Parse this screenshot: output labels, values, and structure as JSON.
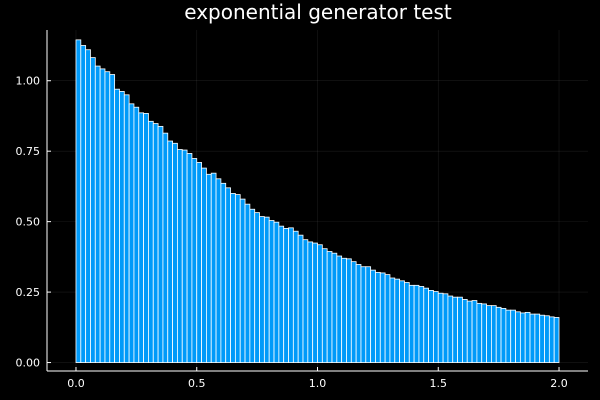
{
  "chart_data": {
    "type": "bar",
    "title": "exponential generator test",
    "xlabel": "",
    "ylabel": "",
    "xlim": [
      -0.12,
      2.12
    ],
    "ylim": [
      -0.03,
      1.18
    ],
    "grid": true,
    "legend": "none",
    "bar_color": "#009af9",
    "edge_color": "#ffffff",
    "bin_width": 0.02,
    "x_start": 0.0,
    "xticks": [
      0.0,
      0.5,
      1.0,
      1.5,
      2.0
    ],
    "xtick_labels": [
      "0.0",
      "0.5",
      "1.0",
      "1.5",
      "2.0"
    ],
    "yticks": [
      0.0,
      0.25,
      0.5,
      0.75,
      1.0
    ],
    "ytick_labels": [
      "0.00",
      "0.25",
      "0.50",
      "0.75",
      "1.00"
    ],
    "values": [
      1.145,
      1.125,
      1.11,
      1.082,
      1.052,
      1.042,
      1.032,
      1.022,
      0.97,
      0.962,
      0.95,
      0.918,
      0.906,
      0.886,
      0.884,
      0.856,
      0.848,
      0.838,
      0.814,
      0.786,
      0.778,
      0.756,
      0.754,
      0.742,
      0.724,
      0.71,
      0.69,
      0.668,
      0.672,
      0.652,
      0.636,
      0.62,
      0.6,
      0.596,
      0.58,
      0.562,
      0.544,
      0.532,
      0.518,
      0.516,
      0.504,
      0.498,
      0.484,
      0.476,
      0.478,
      0.466,
      0.452,
      0.436,
      0.428,
      0.424,
      0.418,
      0.404,
      0.394,
      0.388,
      0.378,
      0.37,
      0.368,
      0.358,
      0.348,
      0.34,
      0.34,
      0.328,
      0.32,
      0.318,
      0.312,
      0.3,
      0.296,
      0.29,
      0.284,
      0.274,
      0.274,
      0.27,
      0.264,
      0.256,
      0.252,
      0.246,
      0.244,
      0.236,
      0.232,
      0.232,
      0.224,
      0.218,
      0.22,
      0.21,
      0.208,
      0.202,
      0.202,
      0.196,
      0.192,
      0.186,
      0.186,
      0.18,
      0.176,
      0.178,
      0.172,
      0.172,
      0.168,
      0.166,
      0.162,
      0.16
    ]
  }
}
